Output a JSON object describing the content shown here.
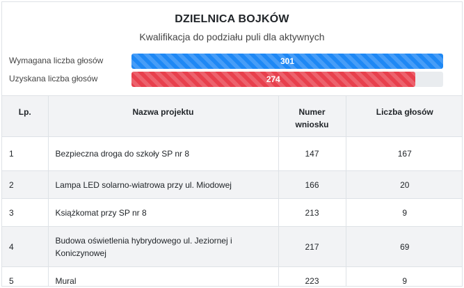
{
  "header": {
    "title": "DZIELNICA BOJKÓW",
    "subtitle": "Kwalifikacja do podziału puli dla aktywnych"
  },
  "progress": [
    {
      "label": "Wymagana liczba głosów",
      "value": "301",
      "fraction": 1.0,
      "color": "#1e88f5"
    },
    {
      "label": "Uzyskana liczba głosów",
      "value": "274",
      "fraction": 0.91,
      "color": "#e8404d"
    }
  ],
  "table": {
    "headers": {
      "lp": "Lp.",
      "name": "Nazwa projektu",
      "number": "Numer wniosku",
      "votes": "Liczba głosów"
    },
    "rows": [
      {
        "lp": "1",
        "name": "Bezpieczna droga do szkoły SP nr 8",
        "number": "147",
        "votes": "167"
      },
      {
        "lp": "2",
        "name": "Lampa LED solarno-wiatrowa przy ul. Miodowej",
        "number": "166",
        "votes": "20"
      },
      {
        "lp": "3",
        "name": "Książkomat przy SP nr 8",
        "number": "213",
        "votes": "9"
      },
      {
        "lp": "4",
        "name": "Budowa oświetlenia hybrydowego ul. Jeziornej i Koniczynowej",
        "number": "217",
        "votes": "69"
      },
      {
        "lp": "5",
        "name": "Mural",
        "number": "223",
        "votes": "9"
      }
    ]
  }
}
